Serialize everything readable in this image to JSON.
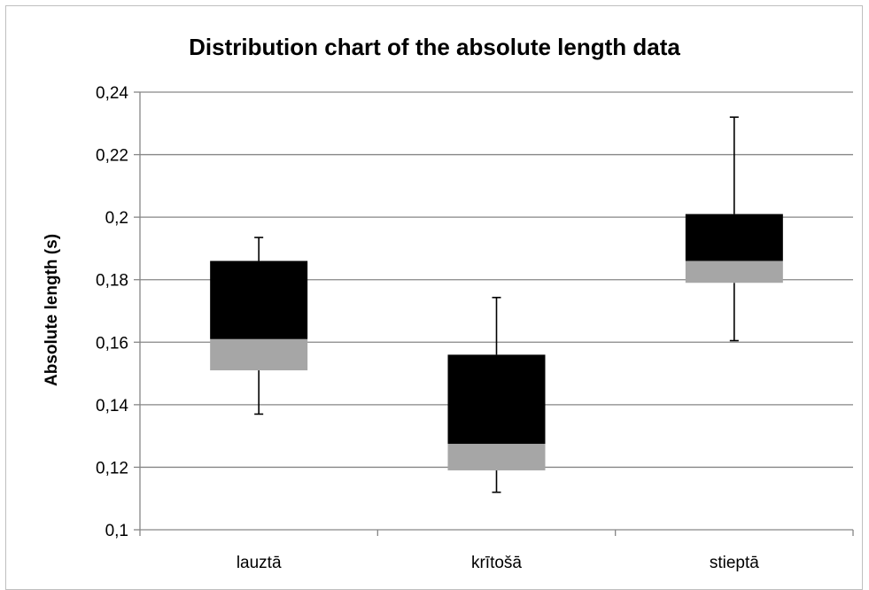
{
  "chart_data": {
    "type": "box",
    "title": "Distribution chart of the absolute length data",
    "xlabel": "",
    "ylabel": "Absolute length (s)",
    "ylim": [
      0.1,
      0.24
    ],
    "ytick_values": [
      0.1,
      0.12,
      0.14,
      0.16,
      0.18,
      0.2,
      0.22,
      0.24
    ],
    "ytick_labels": [
      "0,1",
      "0,12",
      "0,14",
      "0,16",
      "0,18",
      "0,2",
      "0,22",
      "0,24"
    ],
    "categories": [
      "lauztā",
      "krītošā",
      "stieptā"
    ],
    "series": [
      {
        "category": "lauztā",
        "min": 0.137,
        "q1": 0.151,
        "median": 0.161,
        "q3": 0.186,
        "max": 0.1935
      },
      {
        "category": "krītošā",
        "min": 0.112,
        "q1": 0.119,
        "median": 0.1275,
        "q3": 0.156,
        "max": 0.1743
      },
      {
        "category": "stieptā",
        "min": 0.1605,
        "q1": 0.179,
        "median": 0.186,
        "q3": 0.201,
        "max": 0.232
      }
    ],
    "grid": true,
    "colors": {
      "upper_box": "#000000",
      "lower_box": "#a6a6a6",
      "grid": "#868686",
      "whisker": "#000000"
    }
  }
}
